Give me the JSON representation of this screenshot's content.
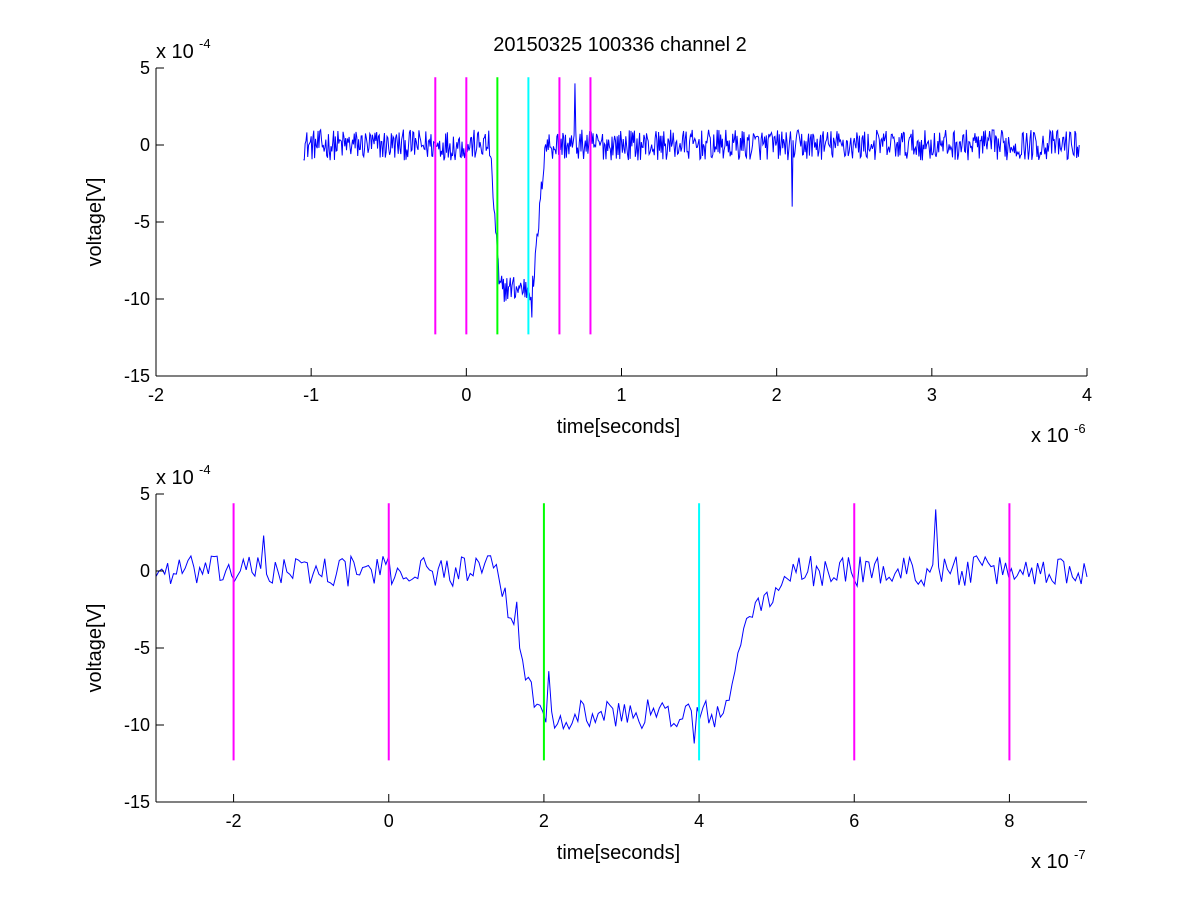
{
  "figure": {
    "title": "20150325 100336 channel 2"
  },
  "chart_data": [
    {
      "type": "line",
      "title": "20150325 100336 channel 2",
      "xlabel": "time[seconds]",
      "ylabel": "voltage[V]",
      "x_exponent": "x 10",
      "x_exponent_power": "-6",
      "y_exponent": "x 10",
      "y_exponent_power": "-4",
      "xlim": [
        -2,
        4
      ],
      "ylim": [
        -15,
        5
      ],
      "xticks": [
        -2,
        -1,
        0,
        1,
        2,
        3,
        4
      ],
      "yticks": [
        -15,
        -10,
        -5,
        0,
        5
      ],
      "series": [
        {
          "color": "#0000ff",
          "trace": {
            "x_start": -1.05,
            "x_end": 3.95,
            "segments": [
              {
                "x": [
                  -1.05,
                  0.15
                ],
                "level": 0,
                "noise": 1.0
              },
              {
                "x": [
                  0.15,
                  0.21
                ],
                "from": 0,
                "to": -8.5
              },
              {
                "x": [
                  0.21,
                  0.43
                ],
                "level": -9.3,
                "noise": 0.9
              },
              {
                "x": [
                  0.43,
                  0.5
                ],
                "from": -9.3,
                "to": -1.0
              },
              {
                "x": [
                  0.5,
                  3.95
                ],
                "level": 0,
                "noise": 1.0
              }
            ],
            "spikes": [
              {
                "x": 0.7,
                "y": 4.0
              },
              {
                "x": 2.1,
                "y": -4.0
              },
              {
                "x": 0.42,
                "y": -11.2
              }
            ]
          }
        }
      ],
      "vertical_markers": [
        {
          "x": -0.2,
          "color": "#ff00ff"
        },
        {
          "x": 0.0,
          "color": "#ff00ff"
        },
        {
          "x": 0.2,
          "color": "#00ff00"
        },
        {
          "x": 0.4,
          "color": "#00ffff"
        },
        {
          "x": 0.6,
          "color": "#ff00ff"
        },
        {
          "x": 0.8,
          "color": "#ff00ff"
        }
      ],
      "marker_range": [
        -12.3,
        4.4
      ],
      "grid": false
    },
    {
      "type": "line",
      "xlabel": "time[seconds]",
      "ylabel": "voltage[V]",
      "x_exponent": "x 10",
      "x_exponent_power": "-7",
      "y_exponent": "x 10",
      "y_exponent_power": "-4",
      "xlim": [
        -3,
        9
      ],
      "ylim": [
        -15,
        5
      ],
      "xticks": [
        -2,
        0,
        2,
        4,
        6,
        8
      ],
      "yticks": [
        -15,
        -10,
        -5,
        0,
        5
      ],
      "series": [
        {
          "color": "#0000ff",
          "trace": {
            "x_start": -3,
            "x_end": 9,
            "segments": [
              {
                "x": [
                  -3,
                  1.4
                ],
                "level": 0,
                "noise": 1.0
              },
              {
                "x": [
                  1.4,
                  1.9
                ],
                "from": 0,
                "to": -8.8
              },
              {
                "x": [
                  1.9,
                  4.35
                ],
                "level": -9.3,
                "noise": 1.0
              },
              {
                "x": [
                  4.35,
                  4.6
                ],
                "from": -9.3,
                "to": -3.0
              },
              {
                "x": [
                  4.6,
                  5.2
                ],
                "from": -3.0,
                "to": -0.5
              },
              {
                "x": [
                  5.2,
                  9
                ],
                "level": 0,
                "noise": 1.0
              }
            ],
            "spikes": [
              {
                "x": -1.6,
                "y": 2.3
              },
              {
                "x": 7.05,
                "y": 4.0
              },
              {
                "x": 3.95,
                "y": -11.2
              },
              {
                "x": 2.05,
                "y": -6.5
              },
              {
                "x": 1.65,
                "y": -2.0
              }
            ]
          }
        }
      ],
      "vertical_markers": [
        {
          "x": -2,
          "color": "#ff00ff"
        },
        {
          "x": 0,
          "color": "#ff00ff"
        },
        {
          "x": 2,
          "color": "#00ff00"
        },
        {
          "x": 4,
          "color": "#00ffff"
        },
        {
          "x": 6,
          "color": "#ff00ff"
        },
        {
          "x": 8,
          "color": "#ff00ff"
        }
      ],
      "marker_range": [
        -12.3,
        4.4
      ],
      "grid": false
    }
  ]
}
